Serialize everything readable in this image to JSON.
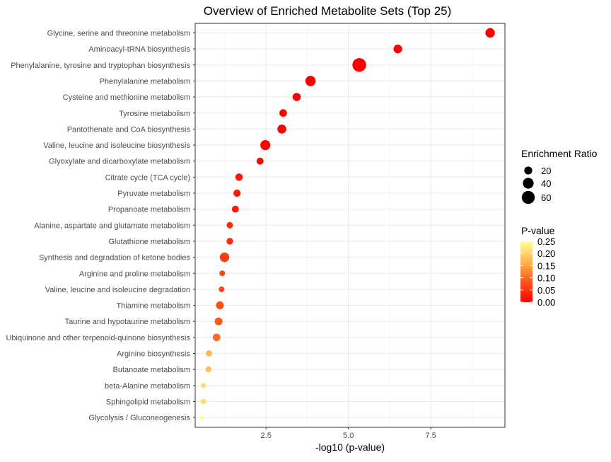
{
  "chart_data": {
    "type": "scatter",
    "title": "Overview of Enriched Metabolite Sets (Top 25)",
    "xlabel": "-log10 (p-value)",
    "ylabel": "",
    "xlim": [
      0.35,
      9.75
    ],
    "x_ticks": [
      2.5,
      5.0,
      7.5
    ],
    "x_tick_labels": [
      "2.5",
      "5.0",
      "7.5"
    ],
    "grid": true,
    "legend_position": "right",
    "size_legend": {
      "title": "Enrichment Ratio",
      "values": [
        20,
        40,
        60
      ],
      "labels": [
        "20",
        "40",
        "60"
      ]
    },
    "color_legend": {
      "title": "P-value",
      "range": [
        0,
        0.25
      ],
      "ticks": [
        0.25,
        0.2,
        0.15,
        0.1,
        0.05,
        0.0
      ],
      "tick_labels": [
        "0.25",
        "0.20",
        "0.15",
        "0.10",
        "0.05",
        "0.00"
      ],
      "low_color": "#ff0000",
      "high_color": "#ffff99"
    },
    "points": [
      {
        "label": "Glycine, serine and threonine metabolism",
        "x": 9.3,
        "p": 0.0,
        "ratio": 30
      },
      {
        "label": "Aminoacyl-tRNA biosynthesis",
        "x": 6.5,
        "p": 0.0,
        "ratio": 24
      },
      {
        "label": "Phenylalanine, tyrosine and tryptophan biosynthesis",
        "x": 5.33,
        "p": 0.0,
        "ratio": 68
      },
      {
        "label": "Phenylalanine metabolism",
        "x": 3.85,
        "p": 0.0,
        "ratio": 36
      },
      {
        "label": "Cysteine and methionine metabolism",
        "x": 3.43,
        "p": 0.0,
        "ratio": 21
      },
      {
        "label": "Tyrosine metabolism",
        "x": 3.02,
        "p": 0.001,
        "ratio": 18
      },
      {
        "label": "Pantothenate and CoA biosynthesis",
        "x": 2.98,
        "p": 0.001,
        "ratio": 26
      },
      {
        "label": "Valine, leucine and isoleucine biosynthesis",
        "x": 2.48,
        "p": 0.003,
        "ratio": 34
      },
      {
        "label": "Glyoxylate and dicarboxylate metabolism",
        "x": 2.32,
        "p": 0.005,
        "ratio": 15
      },
      {
        "label": "Citrate cycle (TCA cycle)",
        "x": 1.68,
        "p": 0.021,
        "ratio": 17
      },
      {
        "label": "Pyruvate metabolism",
        "x": 1.62,
        "p": 0.024,
        "ratio": 16
      },
      {
        "label": "Propanoate metabolism",
        "x": 1.57,
        "p": 0.027,
        "ratio": 15
      },
      {
        "label": "Alanine, aspartate and glutamate metabolism",
        "x": 1.4,
        "p": 0.04,
        "ratio": 12
      },
      {
        "label": "Glutathione metabolism",
        "x": 1.4,
        "p": 0.04,
        "ratio": 13
      },
      {
        "label": "Synthesis and degradation of ketone bodies",
        "x": 1.24,
        "p": 0.058,
        "ratio": 30
      },
      {
        "label": "Arginine and proline metabolism",
        "x": 1.17,
        "p": 0.068,
        "ratio": 9
      },
      {
        "label": "Valine, leucine and isoleucine degradation",
        "x": 1.15,
        "p": 0.071,
        "ratio": 9
      },
      {
        "label": "Thiamine metabolism",
        "x": 1.1,
        "p": 0.079,
        "ratio": 20
      },
      {
        "label": "Taurine and hypotaurine metabolism",
        "x": 1.06,
        "p": 0.087,
        "ratio": 19
      },
      {
        "label": "Ubiquinone and other terpenoid-quinone biosynthesis",
        "x": 1.0,
        "p": 0.1,
        "ratio": 18
      },
      {
        "label": "Arginine biosynthesis",
        "x": 0.77,
        "p": 0.17,
        "ratio": 11
      },
      {
        "label": "Butanoate metabolism",
        "x": 0.75,
        "p": 0.178,
        "ratio": 10
      },
      {
        "label": "beta-Alanine metabolism",
        "x": 0.6,
        "p": 0.21,
        "ratio": 7
      },
      {
        "label": "Sphingolipid metabolism",
        "x": 0.6,
        "p": 0.21,
        "ratio": 8
      },
      {
        "label": "Glycolysis / Gluconeogenesis",
        "x": 0.55,
        "p": 0.25,
        "ratio": 5
      }
    ]
  }
}
